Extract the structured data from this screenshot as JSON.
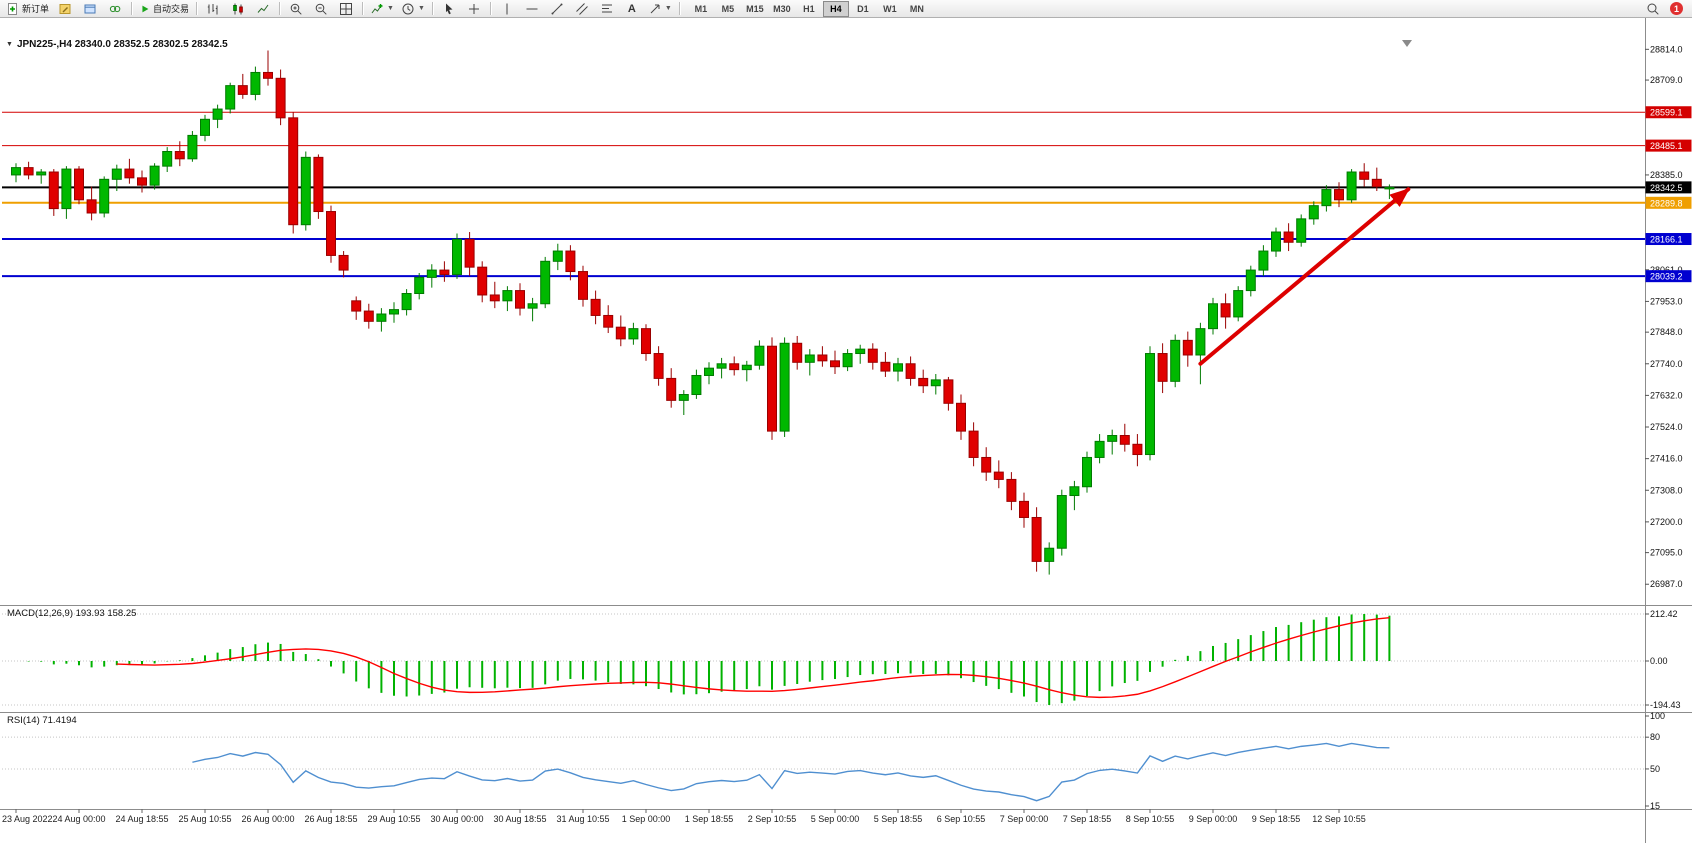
{
  "toolbar": {
    "new_order_label": "新订单",
    "autotrading_label": "自动交易",
    "text_tool_label": "A",
    "notification_count": "1",
    "timeframes": [
      {
        "label": "M1",
        "active": false
      },
      {
        "label": "M5",
        "active": false
      },
      {
        "label": "M15",
        "active": false
      },
      {
        "label": "M30",
        "active": false
      },
      {
        "label": "H1",
        "active": false
      },
      {
        "label": "H4",
        "active": true
      },
      {
        "label": "D1",
        "active": false
      },
      {
        "label": "W1",
        "active": false
      },
      {
        "label": "MN",
        "active": false
      }
    ]
  },
  "chart_data": {
    "type": "candlestick",
    "symbol_title": "JPN225-,H4  28340.0 28352.5 28302.5 28342.5",
    "colors": {
      "up_fill": "#00b800",
      "up_edge": "#007a00",
      "down_fill": "#e00000",
      "down_edge": "#9a0000",
      "macd_hist": "#00b200",
      "macd_signal": "#ff0000",
      "rsi_line": "#4f8fd0"
    },
    "price_pane": {
      "price_min": 26940,
      "price_max": 28880,
      "axis_labels": [
        "28814.0",
        "28709.0",
        "28385.0",
        "28061.0",
        "27953.0",
        "27848.0",
        "27740.0",
        "27632.0",
        "27524.0",
        "27416.0",
        "27308.0",
        "27200.0",
        "27095.0",
        "26987.0"
      ],
      "levels": [
        {
          "price": 28599.1,
          "label": "28599.1",
          "color": "#d40000",
          "width": 1
        },
        {
          "price": 28485.1,
          "label": "28485.1",
          "color": "#d40000",
          "width": 1
        },
        {
          "price": 28342.5,
          "label": "28342.5",
          "color": "#000000",
          "width": 2
        },
        {
          "price": 28289.8,
          "label": "28289.8",
          "color": "#ef9f00",
          "width": 2
        },
        {
          "price": 28166.1,
          "label": "28166.1",
          "color": "#0000d0",
          "width": 2
        },
        {
          "price": 28039.2,
          "label": "28039.2",
          "color": "#0000d0",
          "width": 2
        }
      ]
    },
    "candles": [
      [
        28385,
        28425,
        28360,
        28410
      ],
      [
        28410,
        28430,
        28370,
        28385
      ],
      [
        28385,
        28405,
        28355,
        28395
      ],
      [
        28395,
        28405,
        28245,
        28270
      ],
      [
        28270,
        28415,
        28235,
        28405
      ],
      [
        28405,
        28415,
        28285,
        28300
      ],
      [
        28300,
        28345,
        28230,
        28255
      ],
      [
        28255,
        28380,
        28240,
        28370
      ],
      [
        28370,
        28420,
        28330,
        28405
      ],
      [
        28405,
        28440,
        28355,
        28375
      ],
      [
        28375,
        28400,
        28325,
        28350
      ],
      [
        28350,
        28425,
        28335,
        28415
      ],
      [
        28415,
        28480,
        28395,
        28465
      ],
      [
        28465,
        28500,
        28415,
        28440
      ],
      [
        28440,
        28535,
        28430,
        28520
      ],
      [
        28520,
        28590,
        28500,
        28575
      ],
      [
        28575,
        28625,
        28545,
        28610
      ],
      [
        28610,
        28700,
        28595,
        28690
      ],
      [
        28690,
        28730,
        28645,
        28660
      ],
      [
        28660,
        28755,
        28640,
        28735
      ],
      [
        28735,
        28810,
        28690,
        28715
      ],
      [
        28715,
        28745,
        28555,
        28580
      ],
      [
        28580,
        28600,
        28185,
        28215
      ],
      [
        28215,
        28465,
        28195,
        28445
      ],
      [
        28445,
        28455,
        28235,
        28260
      ],
      [
        28260,
        28280,
        28085,
        28110
      ],
      [
        28110,
        28125,
        28035,
        28060
      ],
      [
        27955,
        27970,
        27890,
        27920
      ],
      [
        27920,
        27945,
        27860,
        27885
      ],
      [
        27885,
        27930,
        27850,
        27910
      ],
      [
        27910,
        27950,
        27880,
        27925
      ],
      [
        27925,
        27995,
        27905,
        27980
      ],
      [
        27980,
        28050,
        27960,
        28035
      ],
      [
        28035,
        28080,
        28000,
        28060
      ],
      [
        28060,
        28090,
        28020,
        28045
      ],
      [
        28045,
        28185,
        28030,
        28165
      ],
      [
        28165,
        28190,
        28040,
        28070
      ],
      [
        28070,
        28090,
        27950,
        27975
      ],
      [
        27975,
        28020,
        27930,
        27955
      ],
      [
        27955,
        28005,
        27920,
        27990
      ],
      [
        27990,
        28015,
        27905,
        27930
      ],
      [
        27930,
        27965,
        27885,
        27945
      ],
      [
        27945,
        28105,
        27930,
        28090
      ],
      [
        28090,
        28150,
        28060,
        28125
      ],
      [
        28125,
        28145,
        28025,
        28055
      ],
      [
        28055,
        28075,
        27935,
        27960
      ],
      [
        27960,
        27990,
        27875,
        27905
      ],
      [
        27905,
        27940,
        27845,
        27865
      ],
      [
        27865,
        27905,
        27800,
        27825
      ],
      [
        27825,
        27880,
        27805,
        27860
      ],
      [
        27860,
        27875,
        27750,
        27775
      ],
      [
        27775,
        27800,
        27665,
        27690
      ],
      [
        27690,
        27725,
        27590,
        27615
      ],
      [
        27615,
        27650,
        27565,
        27635
      ],
      [
        27635,
        27720,
        27620,
        27700
      ],
      [
        27700,
        27745,
        27670,
        27725
      ],
      [
        27725,
        27760,
        27690,
        27740
      ],
      [
        27740,
        27765,
        27700,
        27720
      ],
      [
        27720,
        27750,
        27680,
        27735
      ],
      [
        27735,
        27820,
        27720,
        27800
      ],
      [
        27800,
        27830,
        27480,
        27510
      ],
      [
        27510,
        27830,
        27490,
        27810
      ],
      [
        27810,
        27835,
        27720,
        27745
      ],
      [
        27745,
        27790,
        27700,
        27770
      ],
      [
        27770,
        27800,
        27730,
        27750
      ],
      [
        27750,
        27785,
        27705,
        27730
      ],
      [
        27730,
        27790,
        27715,
        27775
      ],
      [
        27775,
        27805,
        27740,
        27790
      ],
      [
        27790,
        27810,
        27720,
        27745
      ],
      [
        27745,
        27780,
        27695,
        27715
      ],
      [
        27715,
        27760,
        27680,
        27740
      ],
      [
        27740,
        27765,
        27665,
        27690
      ],
      [
        27690,
        27720,
        27640,
        27665
      ],
      [
        27665,
        27705,
        27635,
        27685
      ],
      [
        27685,
        27695,
        27580,
        27605
      ],
      [
        27605,
        27635,
        27480,
        27510
      ],
      [
        27510,
        27540,
        27390,
        27420
      ],
      [
        27420,
        27455,
        27340,
        27370
      ],
      [
        27370,
        27410,
        27315,
        27345
      ],
      [
        27345,
        27370,
        27240,
        27270
      ],
      [
        27270,
        27300,
        27180,
        27215
      ],
      [
        27215,
        27250,
        27030,
        27065
      ],
      [
        27065,
        27130,
        27020,
        27110
      ],
      [
        27110,
        27310,
        27085,
        27290
      ],
      [
        27290,
        27340,
        27240,
        27320
      ],
      [
        27320,
        27440,
        27300,
        27420
      ],
      [
        27420,
        27500,
        27400,
        27475
      ],
      [
        27475,
        27515,
        27430,
        27495
      ],
      [
        27495,
        27535,
        27440,
        27465
      ],
      [
        27465,
        27500,
        27390,
        27430
      ],
      [
        27430,
        27800,
        27410,
        27775
      ],
      [
        27775,
        27810,
        27640,
        27680
      ],
      [
        27680,
        27840,
        27660,
        27820
      ],
      [
        27820,
        27850,
        27730,
        27770
      ],
      [
        27770,
        27880,
        27670,
        27860
      ],
      [
        27860,
        27965,
        27840,
        27945
      ],
      [
        27945,
        27980,
        27860,
        27900
      ],
      [
        27900,
        28005,
        27885,
        27990
      ],
      [
        27990,
        28075,
        27970,
        28060
      ],
      [
        28060,
        28145,
        28040,
        28125
      ],
      [
        28125,
        28205,
        28105,
        28190
      ],
      [
        28190,
        28220,
        28125,
        28155
      ],
      [
        28155,
        28250,
        28140,
        28235
      ],
      [
        28235,
        28295,
        28215,
        28280
      ],
      [
        28280,
        28350,
        28260,
        28335
      ],
      [
        28335,
        28360,
        28275,
        28300
      ],
      [
        28300,
        28405,
        28290,
        28395
      ],
      [
        28395,
        28425,
        28345,
        28370
      ],
      [
        28370,
        28410,
        28330,
        28345
      ],
      [
        28340,
        28352.5,
        28302.5,
        28342.5
      ]
    ],
    "time_labels": [
      {
        "i": 0,
        "t": "23 Aug 2022"
      },
      {
        "i": 5,
        "t": "24 Aug 00:00"
      },
      {
        "i": 10,
        "t": "24 Aug 18:55"
      },
      {
        "i": 15,
        "t": "25 Aug 10:55"
      },
      {
        "i": 20,
        "t": "26 Aug 00:00"
      },
      {
        "i": 25,
        "t": "26 Aug 18:55"
      },
      {
        "i": 30,
        "t": "29 Aug 10:55"
      },
      {
        "i": 35,
        "t": "30 Aug 00:00"
      },
      {
        "i": 40,
        "t": "30 Aug 18:55"
      },
      {
        "i": 45,
        "t": "31 Aug 10:55"
      },
      {
        "i": 50,
        "t": "1 Sep 00:00"
      },
      {
        "i": 55,
        "t": "1 Sep 18:55"
      },
      {
        "i": 60,
        "t": "2 Sep 10:55"
      },
      {
        "i": 65,
        "t": "5 Sep 00:00"
      },
      {
        "i": 70,
        "t": "5 Sep 18:55"
      },
      {
        "i": 75,
        "t": "6 Sep 10:55"
      },
      {
        "i": 80,
        "t": "7 Sep 00:00"
      },
      {
        "i": 85,
        "t": "7 Sep 18:55"
      },
      {
        "i": 90,
        "t": "8 Sep 10:55"
      },
      {
        "i": 95,
        "t": "9 Sep 00:00"
      },
      {
        "i": 100,
        "t": "9 Sep 18:55"
      },
      {
        "i": 105,
        "t": "12 Sep 10:55"
      }
    ],
    "macd": {
      "label": "MACD(12,26,9) 193.93 158.25",
      "params": [
        12,
        26,
        9
      ],
      "axis_labels": [
        "212.42",
        "0.00",
        "-194.43"
      ]
    },
    "rsi": {
      "label": "RSI(14) 71.4194",
      "period": 14,
      "axis_labels": [
        "100",
        "80",
        "50",
        "15"
      ],
      "axis_values": [
        100,
        80,
        50,
        15
      ],
      "level_lines": [
        80,
        50
      ]
    },
    "arrow": {
      "from_index": 94,
      "from_price": 27740,
      "to_index": 110.5,
      "to_price": 28336,
      "color": "#dd0000"
    }
  }
}
